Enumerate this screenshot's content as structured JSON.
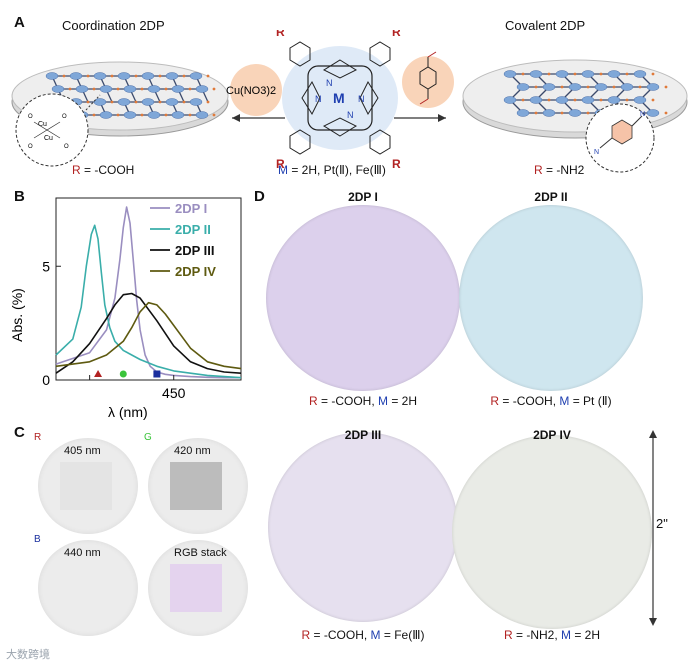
{
  "panels": {
    "a": "A",
    "b": "B",
    "c": "C",
    "d": "D"
  },
  "panelA": {
    "coordination_title": "Coordination 2DP",
    "covalent_title": "Covalent 2DP",
    "reagent_left": "Cu(NO3)2",
    "r_left_prefix": "R",
    "r_left_value": " = -COOH",
    "r_right_prefix": "R",
    "r_right_value": " = -NH2",
    "m_prefix": "M",
    "m_value": " = 2H, Pt(Ⅱ), Fe(Ⅲ)",
    "molecule_R": "R",
    "molecule_M": "M",
    "molecule_N": "N",
    "cu": "Cu",
    "o": "O"
  },
  "chart_data": {
    "type": "line",
    "xlabel": "λ (nm)",
    "ylabel": "Abs. (%)",
    "xlim": [
      380,
      490
    ],
    "ylim": [
      0,
      8
    ],
    "xticks": [
      400,
      450
    ],
    "xtick_labels": [
      "",
      "450"
    ],
    "yticks": [
      0,
      5
    ],
    "ytick_labels": [
      "0",
      "5"
    ],
    "legend_position": "top-right",
    "series": [
      {
        "name": "2DP I",
        "color": "#9a8ec0",
        "x": [
          380,
          400,
          410,
          415,
          418,
          420,
          422,
          424,
          426,
          428,
          430,
          433,
          436,
          440,
          445,
          450,
          460,
          470,
          480,
          490
        ],
        "y": [
          0.7,
          1.2,
          2.2,
          3.6,
          5.3,
          6.7,
          7.6,
          6.9,
          5.2,
          3.5,
          2.2,
          1.1,
          0.6,
          0.35,
          0.25,
          0.2,
          0.15,
          0.12,
          0.1,
          0.1
        ]
      },
      {
        "name": "2DP II",
        "color": "#3aaeaa",
        "x": [
          380,
          390,
          395,
          398,
          401,
          403,
          405,
          407,
          409,
          412,
          415,
          420,
          430,
          440,
          450,
          460,
          470,
          480,
          490
        ],
        "y": [
          1.1,
          1.8,
          3.2,
          5.0,
          6.4,
          6.8,
          6.2,
          4.7,
          3.3,
          2.3,
          1.7,
          1.3,
          0.9,
          0.6,
          0.4,
          0.3,
          0.2,
          0.15,
          0.1
        ]
      },
      {
        "name": "2DP III",
        "color": "#111111",
        "x": [
          380,
          390,
          400,
          410,
          415,
          420,
          425,
          430,
          440,
          450,
          460,
          470,
          480,
          490
        ],
        "y": [
          0.3,
          0.8,
          1.6,
          2.7,
          3.3,
          3.75,
          3.8,
          3.6,
          2.6,
          1.5,
          0.8,
          0.5,
          0.35,
          0.3
        ]
      },
      {
        "name": "2DP IV",
        "color": "#5e5a10",
        "x": [
          380,
          390,
          400,
          410,
          420,
          425,
          430,
          435,
          440,
          445,
          450,
          460,
          470,
          480,
          490
        ],
        "y": [
          0.6,
          0.7,
          0.8,
          1.1,
          1.7,
          2.3,
          3.0,
          3.4,
          3.3,
          2.9,
          2.4,
          1.4,
          0.8,
          0.6,
          0.5
        ]
      }
    ],
    "markers": [
      {
        "label": "R",
        "x": 405,
        "shape": "triangle",
        "color": "#b22222"
      },
      {
        "label": "G",
        "x": 420,
        "shape": "circle",
        "color": "#3ac43a"
      },
      {
        "label": "B",
        "x": 440,
        "shape": "square",
        "color": "#1a2f9e"
      }
    ]
  },
  "panelC": {
    "cells": [
      {
        "tag": "R",
        "label": "405 nm",
        "tag_color": "#b22222",
        "square_color": "#e4e4e4"
      },
      {
        "tag": "G",
        "label": "420 nm",
        "tag_color": "#3ac43a",
        "square_color": "#bcbcbc"
      },
      {
        "tag": "B",
        "label": "440 nm",
        "tag_color": "#1a2f9e",
        "square_color": "#ececec"
      },
      {
        "tag": "",
        "label": "RGB stack",
        "tag_color": "#ffffff",
        "square_color": "#e4d3ee"
      }
    ]
  },
  "panelD": {
    "samples": [
      {
        "title": "2DP I",
        "color": "#dcd0ec",
        "caption": {
          "r": "R",
          "r_val": " = -COOH, ",
          "m": "M",
          "m_val": " = 2H"
        }
      },
      {
        "title": "2DP II",
        "color": "#cfe6ef",
        "caption": {
          "r": "R",
          "r_val": " = -COOH, ",
          "m": "M",
          "m_val": " = Pt (Ⅱ)"
        }
      },
      {
        "title": "2DP III",
        "color": "#e6e0ef",
        "caption": {
          "r": "R",
          "r_val": " = -COOH, ",
          "m": "M",
          "m_val": " = Fe(Ⅲ)"
        }
      },
      {
        "title": "2DP IV",
        "color": "#e9ebe6",
        "caption": {
          "r": "R",
          "r_val": " = -NH2, ",
          "m": "M",
          "m_val": " = 2H"
        }
      }
    ],
    "scale_label": "2\""
  },
  "watermark": "大数跨境",
  "colors": {
    "node": "#7fa7d8",
    "edge": "#3b4a6b",
    "accent": "#e07a3a",
    "red": "#b22222",
    "blue": "#1f3fb0"
  }
}
